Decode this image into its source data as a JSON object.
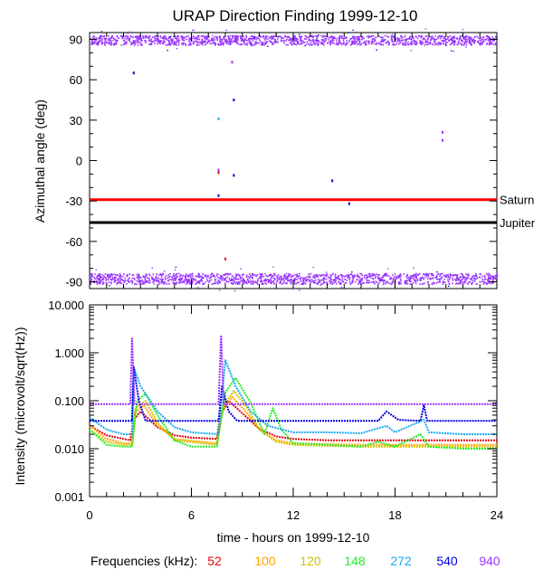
{
  "title": "URAP Direction Finding  1999-12-10",
  "colors": {
    "52": "#e8000b",
    "100": "#ffa500",
    "120": "#d6c000",
    "148": "#22ee22",
    "272": "#1aa8f0",
    "540": "#0000dd",
    "940": "#9933ff",
    "saturn_line": "#ff0000",
    "jupiter_line": "#000000"
  },
  "chart_data": [
    {
      "type": "scatter",
      "panel": "top",
      "title": "URAP Direction Finding  1999-12-10",
      "ylabel": "Azimuthal angle (deg)",
      "xlim": [
        0,
        24
      ],
      "ylim": [
        -95,
        95
      ],
      "yticks": [
        "90",
        "60",
        "30",
        "0",
        "-30",
        "-60",
        "-90"
      ],
      "bands": [
        {
          "name": "940",
          "y_center": 89,
          "y_spread": 3.5
        },
        {
          "name": "940",
          "y_center": -88,
          "y_spread": 4
        }
      ],
      "reference_lines": [
        {
          "label": "Saturn",
          "y": -29,
          "color": "#ff0000"
        },
        {
          "label": "Jupiter",
          "y": -46,
          "color": "#000000"
        }
      ],
      "scattered_points": [
        {
          "series": "540",
          "x": 2.6,
          "y": 65
        },
        {
          "series": "940",
          "x": 7.6,
          "y": -7
        },
        {
          "series": "52",
          "x": 7.6,
          "y": -9
        },
        {
          "series": "540",
          "x": 7.6,
          "y": -26
        },
        {
          "series": "272",
          "x": 7.6,
          "y": 31
        },
        {
          "series": "540",
          "x": 8.5,
          "y": 45
        },
        {
          "series": "940",
          "x": 8.4,
          "y": 73
        },
        {
          "series": "540",
          "x": 8.5,
          "y": -11
        },
        {
          "series": "540",
          "x": 14.3,
          "y": -15
        },
        {
          "series": "540",
          "x": 15.3,
          "y": -32
        },
        {
          "series": "940",
          "x": 20.8,
          "y": 21
        },
        {
          "series": "940",
          "x": 20.8,
          "y": 15
        },
        {
          "series": "52",
          "x": 8.0,
          "y": -73
        }
      ]
    },
    {
      "type": "line",
      "panel": "bottom",
      "xlabel": "time - hours on 1999-12-10",
      "ylabel": "Intensity (microvolt/sqrt(Hz))",
      "xlim": [
        0,
        24
      ],
      "ylim": [
        0.001,
        10
      ],
      "yscale": "log",
      "xticks": [
        "0",
        "6",
        "12",
        "18",
        "24"
      ],
      "yticks": [
        "10.000",
        "1.000",
        "0.100",
        "0.010",
        "0.001"
      ],
      "series": [
        {
          "name": "52",
          "points": [
            [
              0,
              0.03
            ],
            [
              1,
              0.019
            ],
            [
              2,
              0.016
            ],
            [
              2.4,
              0.015
            ],
            [
              2.6,
              0.04
            ],
            [
              3,
              0.06
            ],
            [
              4,
              0.028
            ],
            [
              5,
              0.019
            ],
            [
              6,
              0.017
            ],
            [
              7.5,
              0.016
            ],
            [
              7.7,
              0.05
            ],
            [
              8.2,
              0.1
            ],
            [
              9,
              0.055
            ],
            [
              10,
              0.026
            ],
            [
              11,
              0.018
            ],
            [
              12,
              0.016
            ],
            [
              14,
              0.015
            ],
            [
              16,
              0.015
            ],
            [
              18,
              0.015
            ],
            [
              20,
              0.015
            ],
            [
              22,
              0.015
            ],
            [
              24,
              0.015
            ]
          ]
        },
        {
          "name": "100",
          "points": [
            [
              0,
              0.03
            ],
            [
              1,
              0.016
            ],
            [
              2,
              0.013
            ],
            [
              2.5,
              0.013
            ],
            [
              2.7,
              0.06
            ],
            [
              3.2,
              0.08
            ],
            [
              4,
              0.03
            ],
            [
              5,
              0.016
            ],
            [
              7.5,
              0.013
            ],
            [
              7.8,
              0.06
            ],
            [
              8.4,
              0.12
            ],
            [
              9.2,
              0.06
            ],
            [
              10,
              0.025
            ],
            [
              11,
              0.015
            ],
            [
              12,
              0.013
            ],
            [
              16,
              0.012
            ],
            [
              20,
              0.012
            ],
            [
              24,
              0.012
            ]
          ]
        },
        {
          "name": "120",
          "points": [
            [
              0,
              0.025
            ],
            [
              1,
              0.014
            ],
            [
              2,
              0.012
            ],
            [
              2.5,
              0.012
            ],
            [
              2.7,
              0.07
            ],
            [
              3.3,
              0.1
            ],
            [
              4,
              0.035
            ],
            [
              5,
              0.015
            ],
            [
              7.5,
              0.012
            ],
            [
              7.9,
              0.08
            ],
            [
              8.5,
              0.16
            ],
            [
              9.3,
              0.07
            ],
            [
              10,
              0.025
            ],
            [
              11,
              0.014
            ],
            [
              12,
              0.012
            ],
            [
              16,
              0.011
            ],
            [
              20,
              0.011
            ],
            [
              24,
              0.011
            ]
          ]
        },
        {
          "name": "148",
          "points": [
            [
              0,
              0.025
            ],
            [
              1,
              0.012
            ],
            [
              2,
              0.011
            ],
            [
              2.5,
              0.011
            ],
            [
              2.8,
              0.1
            ],
            [
              3.3,
              0.14
            ],
            [
              4,
              0.05
            ],
            [
              5,
              0.015
            ],
            [
              6,
              0.011
            ],
            [
              7.5,
              0.011
            ],
            [
              8.0,
              0.15
            ],
            [
              8.6,
              0.3
            ],
            [
              9.5,
              0.09
            ],
            [
              10.3,
              0.02
            ],
            [
              10.8,
              0.07
            ],
            [
              11.3,
              0.025
            ],
            [
              12,
              0.013
            ],
            [
              14,
              0.012
            ],
            [
              16,
              0.011
            ],
            [
              17,
              0.014
            ],
            [
              18,
              0.011
            ],
            [
              19.5,
              0.02
            ],
            [
              20,
              0.011
            ],
            [
              22,
              0.01
            ],
            [
              24,
              0.01
            ]
          ]
        },
        {
          "name": "272",
          "points": [
            [
              0,
              0.045
            ],
            [
              1,
              0.025
            ],
            [
              2,
              0.02
            ],
            [
              2.5,
              0.02
            ],
            [
              2.6,
              0.5
            ],
            [
              3,
              0.2
            ],
            [
              4,
              0.06
            ],
            [
              5,
              0.028
            ],
            [
              6,
              0.022
            ],
            [
              7.6,
              0.02
            ],
            [
              8.0,
              0.7
            ],
            [
              8.6,
              0.2
            ],
            [
              9.5,
              0.06
            ],
            [
              10.5,
              0.03
            ],
            [
              12,
              0.022
            ],
            [
              14,
              0.022
            ],
            [
              16,
              0.021
            ],
            [
              17.5,
              0.03
            ],
            [
              18,
              0.022
            ],
            [
              19.7,
              0.04
            ],
            [
              20,
              0.022
            ],
            [
              22,
              0.02
            ],
            [
              24,
              0.02
            ]
          ]
        },
        {
          "name": "540",
          "points": [
            [
              0,
              0.038
            ],
            [
              2.5,
              0.038
            ],
            [
              2.6,
              0.5
            ],
            [
              2.9,
              0.1
            ],
            [
              3.3,
              0.038
            ],
            [
              7.6,
              0.038
            ],
            [
              7.8,
              0.2
            ],
            [
              8.2,
              0.06
            ],
            [
              8.7,
              0.038
            ],
            [
              17,
              0.038
            ],
            [
              17.5,
              0.06
            ],
            [
              18.2,
              0.04
            ],
            [
              19.5,
              0.038
            ],
            [
              19.7,
              0.08
            ],
            [
              19.9,
              0.038
            ],
            [
              24,
              0.038
            ]
          ]
        },
        {
          "name": "940",
          "points": [
            [
              0,
              0.085
            ],
            [
              2.4,
              0.085
            ],
            [
              2.5,
              2.0
            ],
            [
              2.65,
              0.085
            ],
            [
              7.6,
              0.085
            ],
            [
              7.75,
              2.3
            ],
            [
              7.9,
              0.085
            ],
            [
              24,
              0.085
            ]
          ]
        }
      ]
    }
  ],
  "legend": {
    "label": "Frequencies (kHz):",
    "items": [
      {
        "name": "52",
        "color": "#e8000b"
      },
      {
        "name": "100",
        "color": "#ffa500"
      },
      {
        "name": "120",
        "color": "#d6c000"
      },
      {
        "name": "148",
        "color": "#22ee22"
      },
      {
        "name": "272",
        "color": "#1aa8f0"
      },
      {
        "name": "540",
        "color": "#0000dd"
      },
      {
        "name": "940",
        "color": "#9933ff"
      }
    ]
  }
}
